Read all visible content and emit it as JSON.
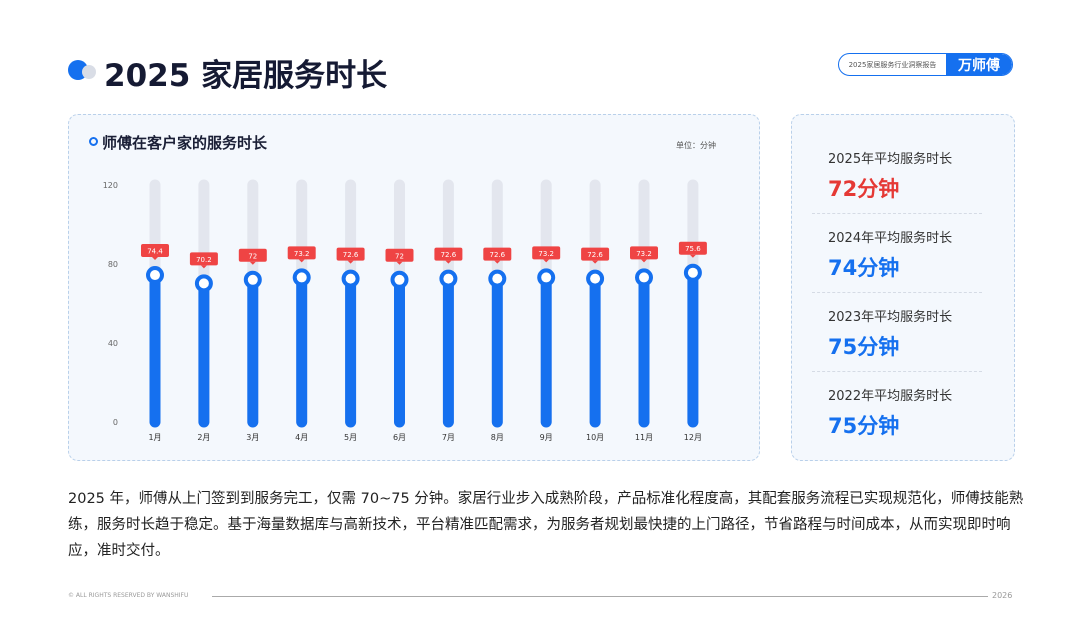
{
  "header": {
    "title": "2025 家居服务时长",
    "badge_text": "2025家居服务行业洞察报告",
    "brand": "万师傅"
  },
  "chart_data": {
    "type": "bar",
    "title": "师傅在客户家的服务时长",
    "unit_label": "单位：分钟",
    "categories": [
      "1月",
      "2月",
      "3月",
      "4月",
      "5月",
      "6月",
      "7月",
      "8月",
      "9月",
      "10月",
      "11月",
      "12月"
    ],
    "values": [
      74.4,
      70.2,
      72,
      73.2,
      72.6,
      72,
      72.6,
      72.6,
      73.2,
      72.6,
      73.2,
      75.6
    ],
    "value_labels": [
      "74.4",
      "70.2",
      "72",
      "73.2",
      "72.6",
      "72",
      "72.6",
      "72.6",
      "73.2",
      "72.6",
      "73.2",
      "75.6"
    ],
    "yticks": [
      "0",
      "40",
      "80",
      "120"
    ],
    "ylim": [
      0,
      120
    ],
    "bar_color": "#1570ef",
    "track_color": "#e3e6ee",
    "label_color": "#ef4444"
  },
  "stats": [
    {
      "label": "2025年平均服务时长",
      "value": "72分钟",
      "color": "#e53935"
    },
    {
      "label": "2024年平均服务时长",
      "value": "74分钟",
      "color": "#1570ef"
    },
    {
      "label": "2023年平均服务时长",
      "value": "75分钟",
      "color": "#1570ef"
    },
    {
      "label": "2022年平均服务时长",
      "value": "75分钟",
      "color": "#1570ef"
    }
  ],
  "description": "2025 年，师傅从上门签到到服务完工，仅需 70~75 分钟。家居行业步入成熟阶段，产品标准化程度高，其配套服务流程已实现规范化，师傅技能熟练，服务时长趋于稳定。基于海量数据库与高新技术，平台精准匹配需求，为服务者规划最快捷的上门路径，节省路程与时间成本，从而实现即时响应，准时交付。",
  "footer": {
    "copyright": "© ALL RIGHTS RESERVED BY WANSHIFU",
    "year": "2026"
  }
}
